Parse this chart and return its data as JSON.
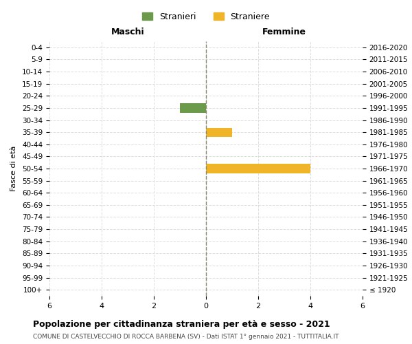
{
  "age_groups": [
    "100+",
    "95-99",
    "90-94",
    "85-89",
    "80-84",
    "75-79",
    "70-74",
    "65-69",
    "60-64",
    "55-59",
    "50-54",
    "45-49",
    "40-44",
    "35-39",
    "30-34",
    "25-29",
    "20-24",
    "15-19",
    "10-14",
    "5-9",
    "0-4"
  ],
  "birth_years": [
    "≤ 1920",
    "1921-1925",
    "1926-1930",
    "1931-1935",
    "1936-1940",
    "1941-1945",
    "1946-1950",
    "1951-1955",
    "1956-1960",
    "1961-1965",
    "1966-1970",
    "1971-1975",
    "1976-1980",
    "1981-1985",
    "1986-1990",
    "1991-1995",
    "1996-2000",
    "2001-2005",
    "2006-2010",
    "2011-2015",
    "2016-2020"
  ],
  "stranieri_males": [
    0,
    0,
    0,
    0,
    0,
    0,
    0,
    0,
    0,
    0,
    0,
    0,
    0,
    0,
    0,
    1,
    0,
    0,
    0,
    0,
    0
  ],
  "straniere_females": [
    0,
    0,
    0,
    0,
    0,
    0,
    0,
    0,
    0,
    0,
    4,
    0,
    0,
    1,
    0,
    0,
    0,
    0,
    0,
    0,
    0
  ],
  "color_stranieri": "#6a9a4a",
  "color_straniere": "#f0b429",
  "xlim": 6,
  "xlabel_left": "Maschi",
  "xlabel_right": "Femmine",
  "ylabel_left": "Fasce di età",
  "title": "Popolazione per cittadinanza straniera per età e sesso - 2021",
  "subtitle": "COMUNE DI CASTELVECCHIO DI ROCCA BARBENA (SV) - Dati ISTAT 1° gennaio 2021 - TUTTITALIA.IT",
  "legend_stranieri": "Stranieri",
  "legend_straniere": "Straniere",
  "background_color": "#ffffff",
  "grid_color": "#dddddd",
  "center_line_color": "#888870",
  "bar_height": 0.75
}
